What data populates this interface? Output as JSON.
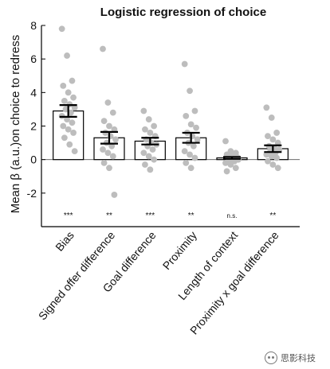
{
  "chart_data": {
    "type": "bar",
    "title": "Logistic regression of choice",
    "ylabel": "Mean β (a.u.)on choice to redress",
    "xlabel": "",
    "ylim": [
      -4,
      8
    ],
    "yticks": [
      8,
      6,
      4,
      2,
      0,
      -2
    ],
    "categories": [
      "Bias",
      "Signed offer difference",
      "Goal difference",
      "Proximity",
      "Length of context",
      "Proximity x goal difference"
    ],
    "values": [
      2.9,
      1.3,
      1.1,
      1.3,
      0.1,
      0.65
    ],
    "errors": [
      0.35,
      0.35,
      0.2,
      0.3,
      0.06,
      0.2
    ],
    "significance": [
      "***",
      "**",
      "***",
      "**",
      "n.s.",
      "**"
    ],
    "points": [
      [
        7.8,
        6.2,
        4.7,
        4.4,
        4.0,
        3.7,
        3.5,
        3.3,
        3.1,
        3.0,
        2.8,
        2.6,
        2.4,
        2.2,
        2.0,
        1.8,
        1.6,
        1.3,
        0.9,
        0.5
      ],
      [
        6.6,
        3.4,
        2.8,
        2.3,
        2.0,
        1.8,
        1.6,
        1.4,
        1.2,
        1.0,
        0.8,
        0.6,
        0.4,
        0.2,
        -0.2,
        -0.5,
        -2.1
      ],
      [
        2.9,
        2.4,
        2.0,
        1.8,
        1.6,
        1.4,
        1.2,
        1.0,
        0.9,
        0.8,
        0.6,
        0.4,
        0.2,
        0.0,
        -0.3,
        -0.6
      ],
      [
        5.7,
        4.1,
        2.9,
        2.6,
        2.1,
        1.9,
        1.6,
        1.4,
        1.2,
        1.0,
        0.8,
        0.5,
        0.3,
        0.1,
        -0.2,
        -0.5
      ],
      [
        1.1,
        0.5,
        0.4,
        0.3,
        0.2,
        0.15,
        0.1,
        0.05,
        0.0,
        -0.05,
        -0.1,
        -0.2,
        -0.3,
        -0.5,
        -0.7
      ],
      [
        3.1,
        2.5,
        1.6,
        1.4,
        1.2,
        1.0,
        0.8,
        0.7,
        0.6,
        0.5,
        0.4,
        0.3,
        0.2,
        0.1,
        -0.1,
        -0.3,
        -0.5
      ]
    ],
    "colors": {
      "bar_fill": "#ffffff",
      "bar_edge": "#000000",
      "points": "#bdbdbd",
      "axis": "#000000"
    }
  },
  "watermark": {
    "text": "思影科技"
  }
}
